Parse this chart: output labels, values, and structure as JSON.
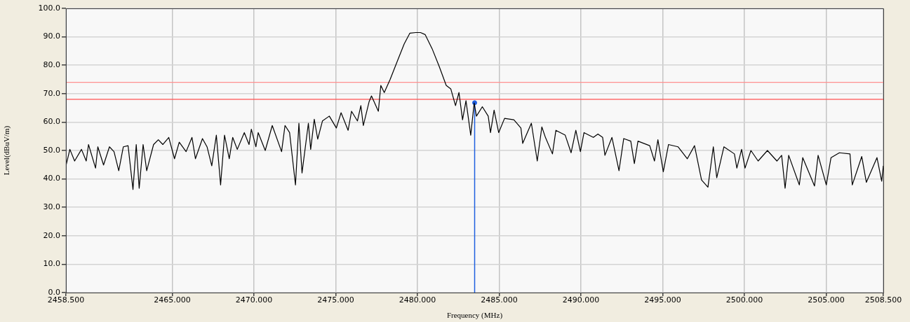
{
  "chart_data": {
    "type": "line",
    "xlabel": "Frequency (MHz)",
    "ylabel": "Level(dBuV/m)",
    "xlim": [
      2458.5,
      2508.5
    ],
    "xticks": [
      {
        "value": 2458.5,
        "label": "2458.500"
      },
      {
        "value": 2465,
        "label": "2465.000"
      },
      {
        "value": 2470,
        "label": "2470.000"
      },
      {
        "value": 2475,
        "label": "2475.000"
      },
      {
        "value": 2480,
        "label": "2480.000"
      },
      {
        "value": 2485,
        "label": "2485.000"
      },
      {
        "value": 2490,
        "label": "2490.000"
      },
      {
        "value": 2495,
        "label": "2495.000"
      },
      {
        "value": 2500,
        "label": "2500.000"
      },
      {
        "value": 2505,
        "label": "2505.000"
      },
      {
        "value": 2508.5,
        "label": "2508.500"
      }
    ],
    "ylim": [
      0,
      100
    ],
    "yticks": [
      {
        "value": 0,
        "label": "0.0"
      },
      {
        "value": 10,
        "label": "10.0"
      },
      {
        "value": 20,
        "label": "20.0"
      },
      {
        "value": 30,
        "label": "30.0"
      },
      {
        "value": 40,
        "label": "40.0"
      },
      {
        "value": 50,
        "label": "50.0"
      },
      {
        "value": 60,
        "label": "60.0"
      },
      {
        "value": 70,
        "label": "70.0"
      },
      {
        "value": 80,
        "label": "80.0"
      },
      {
        "value": 90,
        "label": "90.0"
      },
      {
        "value": 100,
        "label": "100.0"
      }
    ],
    "grid": true,
    "legend": false,
    "line_style": "solid",
    "ref_lines": [
      {
        "axis": "y",
        "value": 74,
        "color": "#ff9090"
      },
      {
        "axis": "y",
        "value": 68,
        "color": "#ff5050"
      }
    ],
    "series": [
      {
        "color": "#000000",
        "x": [
          2458.5,
          2458.74,
          2459.03,
          2459.45,
          2459.74,
          2459.88,
          2460.31,
          2460.45,
          2460.8,
          2461.16,
          2461.44,
          2461.73,
          2462.01,
          2462.3,
          2462.6,
          2462.8,
          2462.98,
          2463.22,
          2463.44,
          2463.86,
          2464.15,
          2464.43,
          2464.79,
          2465.14,
          2465.43,
          2465.85,
          2466.21,
          2466.42,
          2466.85,
          2467.13,
          2467.42,
          2467.7,
          2467.96,
          2468.2,
          2468.49,
          2468.7,
          2468.98,
          2469.41,
          2469.7,
          2469.84,
          2470.12,
          2470.26,
          2470.69,
          2471.12,
          2471.69,
          2471.9,
          2472.18,
          2472.54,
          2472.75,
          2472.94,
          2473.33,
          2473.47,
          2473.69,
          2473.9,
          2474.19,
          2474.61,
          2475.04,
          2475.33,
          2475.76,
          2475.97,
          2476.33,
          2476.54,
          2476.69,
          2477.04,
          2477.19,
          2477.61,
          2477.76,
          2477.97,
          2478.33,
          2478.76,
          2479.19,
          2479.54,
          2479.9,
          2480.19,
          2480.47,
          2480.9,
          2481.33,
          2481.76,
          2482.04,
          2482.33,
          2482.54,
          2482.76,
          2482.97,
          2483.26,
          2483.47,
          2483.61,
          2483.97,
          2484.33,
          2484.47,
          2484.69,
          2484.97,
          2485.33,
          2485.9,
          2486.33,
          2486.44,
          2486.97,
          2487.33,
          2487.61,
          2487.83,
          2488.26,
          2488.47,
          2489.04,
          2489.4,
          2489.69,
          2489.97,
          2490.19,
          2490.76,
          2491.04,
          2491.33,
          2491.47,
          2491.9,
          2492.33,
          2492.62,
          2493.05,
          2493.27,
          2493.49,
          2494.21,
          2494.5,
          2494.71,
          2495.04,
          2495.36,
          2495.94,
          2496.51,
          2496.95,
          2497.38,
          2497.77,
          2498.1,
          2498.31,
          2498.75,
          2499.39,
          2499.54,
          2499.83,
          2500.04,
          2500.4,
          2500.84,
          2501.41,
          2501.99,
          2502.28,
          2502.49,
          2502.71,
          2503.36,
          2503.57,
          2504.29,
          2504.51,
          2505.01,
          2505.3,
          2505.81,
          2506.46,
          2506.6,
          2507.18,
          2507.46,
          2508.11,
          2508.4,
          2508.5
        ],
        "values": [
          44.6,
          50.4,
          46.3,
          50.4,
          46.3,
          52.1,
          43.8,
          51.3,
          44.9,
          51.3,
          49.6,
          42.9,
          51.3,
          51.7,
          36.3,
          52.1,
          36.7,
          52.1,
          42.9,
          52.1,
          53.8,
          52.1,
          54.6,
          47.1,
          52.9,
          49.6,
          54.6,
          47.1,
          54.2,
          51.3,
          44.6,
          55.4,
          37.9,
          55.4,
          47.1,
          54.6,
          50.4,
          56.3,
          52.1,
          57.5,
          51.3,
          56.3,
          50,
          58.8,
          49.6,
          58.8,
          56.3,
          37.9,
          59.6,
          42.1,
          59.6,
          50.4,
          61,
          54,
          60.4,
          62.1,
          57.9,
          63.3,
          57.1,
          63.8,
          60.4,
          65.8,
          58.8,
          67.1,
          69.2,
          63.8,
          72.9,
          70.4,
          75,
          81.3,
          87.5,
          91.3,
          91.5,
          91.5,
          90.8,
          85.8,
          79.6,
          72.9,
          71.7,
          65.8,
          70.4,
          60.8,
          67.5,
          55.4,
          66.7,
          62.1,
          65.4,
          62.1,
          56.3,
          64.2,
          56.3,
          61.3,
          60.8,
          57.9,
          52.5,
          59.6,
          46.3,
          58.3,
          54.6,
          48.8,
          57.1,
          55.4,
          49.2,
          57.1,
          49.6,
          56.3,
          54.6,
          55.8,
          54.6,
          48.3,
          54.6,
          42.9,
          54.2,
          53.3,
          45.4,
          53.3,
          51.7,
          46.3,
          53.8,
          42.5,
          52.1,
          51.3,
          47.1,
          51.7,
          39.6,
          37.1,
          51.3,
          40.4,
          51.3,
          48.8,
          43.8,
          50.4,
          43.8,
          50,
          46.3,
          50,
          46.3,
          48.3,
          36.7,
          48.3,
          37.9,
          47.5,
          37.5,
          48.3,
          37.9,
          47.5,
          49.2,
          48.8,
          37.9,
          47.9,
          38.8,
          47.5,
          39.2,
          44.6
        ]
      },
      {
        "type": "lollipop",
        "marker": "circle",
        "color": "#1f5fe0",
        "x": [
          2483.5
        ],
        "values": [
          66.8
        ]
      }
    ]
  }
}
